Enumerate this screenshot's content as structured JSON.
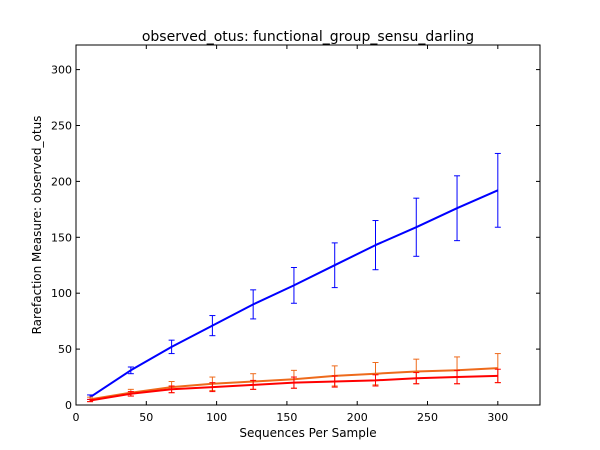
{
  "chart_data": {
    "type": "line",
    "title": "observed_otus: functional_group_sensu_darling",
    "xlabel": "Sequences Per Sample",
    "ylabel": "Rarefaction Measure: observed_otus",
    "xlim": [
      0,
      330
    ],
    "ylim": [
      0,
      322
    ],
    "xticks": [
      0,
      50,
      100,
      150,
      200,
      250,
      300
    ],
    "yticks": [
      0,
      50,
      100,
      150,
      200,
      250,
      300
    ],
    "grid": false,
    "x": [
      10,
      39,
      68,
      97,
      126,
      155,
      184,
      213,
      242,
      271,
      300
    ],
    "series": [
      {
        "color": "#0000ff",
        "values": [
          7,
          31,
          52,
          71,
          90,
          107,
          125,
          143,
          159,
          176,
          192
        ],
        "error": [
          2,
          3,
          6,
          9,
          13,
          16,
          20,
          22,
          26,
          29,
          33
        ]
      },
      {
        "color": "#ee6a1b",
        "values": [
          5,
          11,
          16,
          19,
          21,
          23,
          26,
          28,
          30,
          31,
          33
        ],
        "error": [
          2,
          3,
          5,
          6,
          7,
          8,
          9,
          10,
          11,
          12,
          13
        ]
      },
      {
        "color": "#ff0000",
        "values": [
          4,
          10,
          14,
          16,
          18,
          20,
          21,
          22,
          24,
          25,
          26
        ],
        "error": [
          1,
          2,
          3,
          4,
          4,
          5,
          5,
          5,
          5,
          6,
          6
        ]
      }
    ]
  }
}
